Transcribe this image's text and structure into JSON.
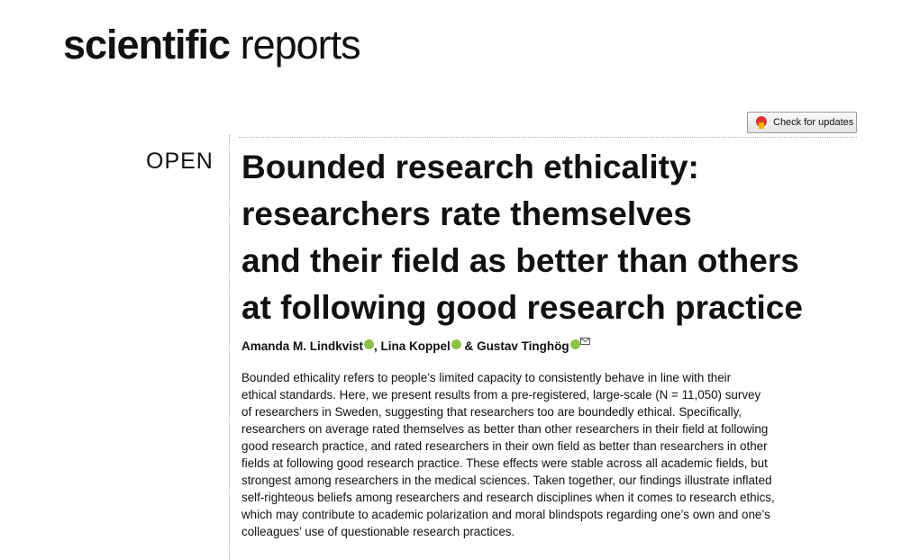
{
  "header": {
    "journal_bold": "scientific",
    "journal_regular": "reports",
    "check_for_updates": "Check for updates"
  },
  "article": {
    "access": "OPEN",
    "title_lines": [
      "Bounded research ethicality:",
      "researchers rate themselves",
      "and their field as better than others",
      "at following good research practice"
    ],
    "authors": [
      "Amanda M. Lindkvist",
      "Lina Koppel",
      "Gustav Tinghög"
    ],
    "author_separators": [
      ", ",
      " & "
    ],
    "abstract_lines": [
      "Bounded ethicality refers to people’s limited capacity to consistently behave in line with their",
      "ethical standards. Here, we present results from a pre-registered, large-scale (N = 11,050) survey",
      "of researchers in Sweden, suggesting that researchers too are boundedly ethical. Specifically,",
      "researchers on average rated themselves as better than other researchers in their field at following",
      "good research practice, and rated researchers in their own field as better than researchers in other",
      "fields at following good research practice. These effects were stable across all academic fields, but",
      "strongest among researchers in the medical sciences. Taken together, our findings illustrate inflated",
      "self-righteous beliefs among researchers and research disciplines when it comes to research ethics,",
      "which may contribute to academic polarization and moral blindspots regarding one’s own and one’s",
      "colleagues’ use of questionable research practices."
    ]
  }
}
